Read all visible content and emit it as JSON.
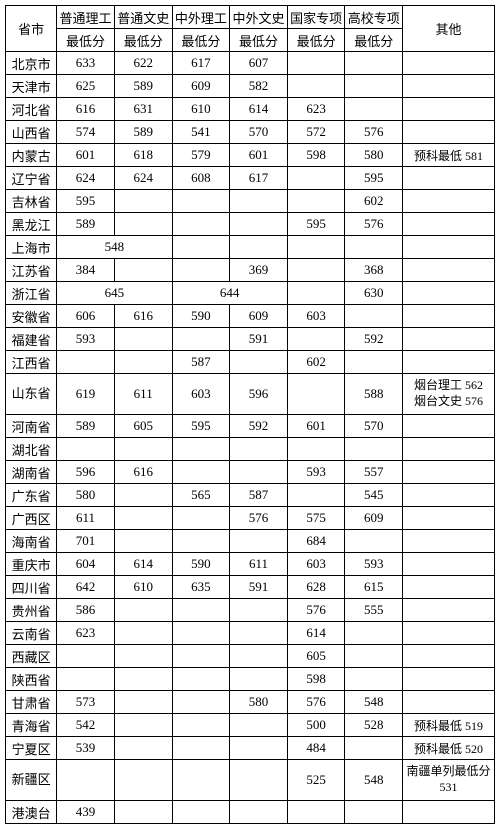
{
  "headers": {
    "province": "省市",
    "cols": [
      "普通理工",
      "普通文史",
      "中外理工",
      "中外文史",
      "国家专项",
      "高校专项",
      "其他"
    ],
    "sub": "最低分"
  },
  "rows": [
    {
      "p": "北京市",
      "c": [
        "633",
        "622",
        "617",
        "607",
        "",
        "",
        ""
      ]
    },
    {
      "p": "天津市",
      "c": [
        "625",
        "589",
        "609",
        "582",
        "",
        "",
        ""
      ]
    },
    {
      "p": "河北省",
      "c": [
        "616",
        "631",
        "610",
        "614",
        "623",
        "",
        ""
      ]
    },
    {
      "p": "山西省",
      "c": [
        "574",
        "589",
        "541",
        "570",
        "572",
        "576",
        ""
      ]
    },
    {
      "p": "内蒙古",
      "c": [
        "601",
        "618",
        "579",
        "601",
        "598",
        "580",
        "预科最低 581"
      ]
    },
    {
      "p": "辽宁省",
      "c": [
        "624",
        "624",
        "608",
        "617",
        "",
        "595",
        ""
      ]
    },
    {
      "p": "吉林省",
      "c": [
        "595",
        "",
        "",
        "",
        "",
        "602",
        ""
      ]
    },
    {
      "p": "黑龙江",
      "c": [
        "589",
        "",
        "",
        "",
        "595",
        "576",
        ""
      ]
    },
    {
      "p": "上海市",
      "span12": "548",
      "c": [
        "",
        "",
        "",
        "",
        "",
        "",
        ""
      ]
    },
    {
      "p": "江苏省",
      "c": [
        "384",
        "",
        "",
        "369",
        "",
        "368",
        ""
      ]
    },
    {
      "p": "浙江省",
      "span12": "645",
      "span34": "644",
      "c": [
        "",
        "",
        "",
        "",
        "",
        "630",
        ""
      ]
    },
    {
      "p": "安徽省",
      "c": [
        "606",
        "616",
        "590",
        "609",
        "603",
        "",
        ""
      ]
    },
    {
      "p": "福建省",
      "c": [
        "593",
        "",
        "",
        "591",
        "",
        "592",
        ""
      ]
    },
    {
      "p": "江西省",
      "c": [
        "",
        "",
        "587",
        "",
        "602",
        "",
        ""
      ]
    },
    {
      "p": "山东省",
      "c": [
        "619",
        "611",
        "603",
        "596",
        "",
        "588",
        "烟台理工 562\n烟台文史 576"
      ],
      "tall": true
    },
    {
      "p": "河南省",
      "c": [
        "589",
        "605",
        "595",
        "592",
        "601",
        "570",
        ""
      ]
    },
    {
      "p": "湖北省",
      "c": [
        "",
        "",
        "",
        "",
        "",
        "",
        ""
      ]
    },
    {
      "p": "湖南省",
      "c": [
        "596",
        "616",
        "",
        "",
        "593",
        "557",
        ""
      ]
    },
    {
      "p": "广东省",
      "c": [
        "580",
        "",
        "565",
        "587",
        "",
        "545",
        ""
      ]
    },
    {
      "p": "广西区",
      "c": [
        "611",
        "",
        "",
        "576",
        "575",
        "609",
        ""
      ]
    },
    {
      "p": "海南省",
      "c": [
        "701",
        "",
        "",
        "",
        "684",
        "",
        ""
      ]
    },
    {
      "p": "重庆市",
      "c": [
        "604",
        "614",
        "590",
        "611",
        "603",
        "593",
        ""
      ]
    },
    {
      "p": "四川省",
      "c": [
        "642",
        "610",
        "635",
        "591",
        "628",
        "615",
        ""
      ]
    },
    {
      "p": "贵州省",
      "c": [
        "586",
        "",
        "",
        "",
        "576",
        "555",
        ""
      ]
    },
    {
      "p": "云南省",
      "c": [
        "623",
        "",
        "",
        "",
        "614",
        "",
        ""
      ]
    },
    {
      "p": "西藏区",
      "c": [
        "",
        "",
        "",
        "",
        "605",
        "",
        ""
      ]
    },
    {
      "p": "陕西省",
      "c": [
        "",
        "",
        "",
        "",
        "598",
        "",
        ""
      ]
    },
    {
      "p": "甘肃省",
      "c": [
        "573",
        "",
        "",
        "580",
        "576",
        "548",
        ""
      ]
    },
    {
      "p": "青海省",
      "c": [
        "542",
        "",
        "",
        "",
        "500",
        "528",
        "预科最低 519"
      ]
    },
    {
      "p": "宁夏区",
      "c": [
        "539",
        "",
        "",
        "",
        "484",
        "",
        "预科最低 520"
      ]
    },
    {
      "p": "新疆区",
      "c": [
        "",
        "",
        "",
        "",
        "525",
        "548",
        "南疆单列最低分 531"
      ],
      "tall": true
    },
    {
      "p": "港澳台",
      "c": [
        "439",
        "",
        "",
        "",
        "",
        "",
        ""
      ]
    }
  ]
}
